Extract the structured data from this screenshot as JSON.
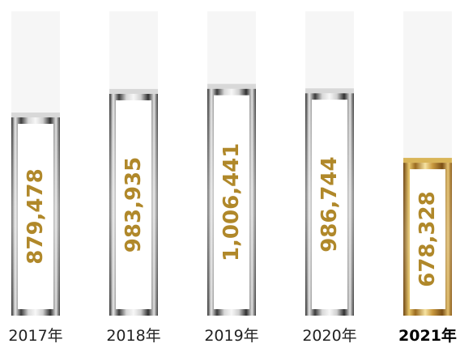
{
  "chart_data": {
    "type": "bar",
    "categories": [
      "2017年",
      "2018年",
      "2019年",
      "2020年",
      "2021年"
    ],
    "values": [
      879478,
      983935,
      1006441,
      986744,
      678328
    ],
    "value_labels": [
      "879,478",
      "983,935",
      "1,006,441",
      "986,744",
      "678,328"
    ],
    "highlight_index": 4,
    "title": "",
    "xlabel": "",
    "ylabel": "",
    "ylim": [
      0,
      1350000
    ],
    "grid": false,
    "legend": "none"
  },
  "colors": {
    "value_text": "#b0882a",
    "silver_dark": "#2b2b2b",
    "silver_light": "#f2f2f2",
    "gold_dark": "#8a5a16",
    "gold_light": "#f3dc8a",
    "track": "#f6f6f6",
    "highlight_text": "#000000"
  }
}
